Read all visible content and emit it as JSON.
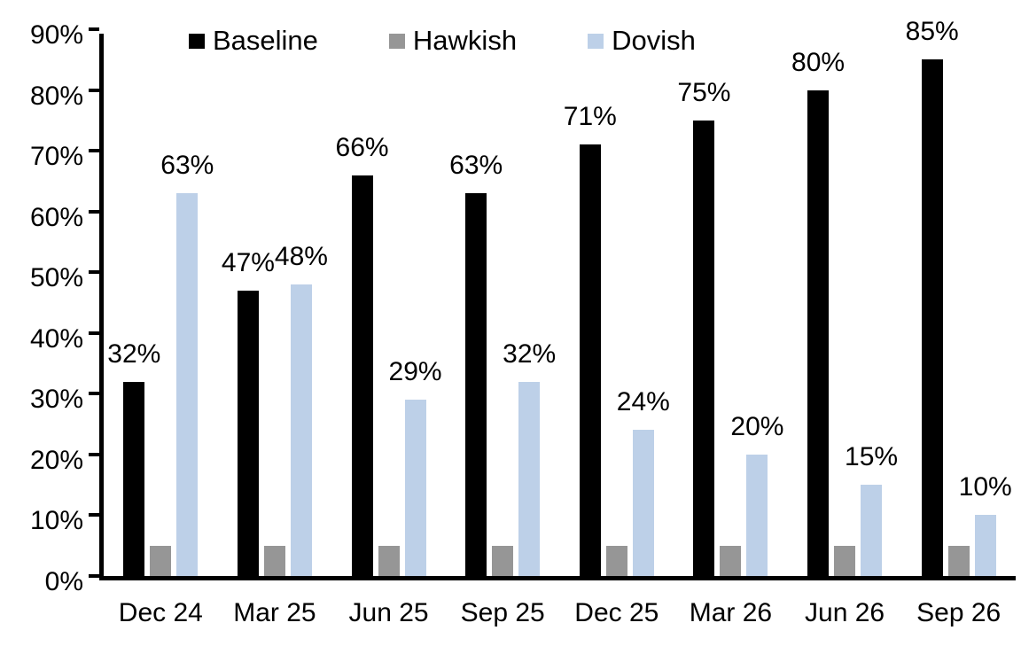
{
  "chart_data": {
    "type": "bar",
    "title": "",
    "xlabel": "",
    "ylabel": "",
    "categories": [
      "Dec 24",
      "Mar 25",
      "Jun 25",
      "Sep 25",
      "Dec 25",
      "Mar 26",
      "Jun 26",
      "Sep 26"
    ],
    "series": [
      {
        "name": "Baseline",
        "color": "#000000",
        "values": [
          32,
          47,
          66,
          63,
          71,
          75,
          80,
          85
        ],
        "show_labels": true
      },
      {
        "name": "Hawkish",
        "color": "#969696",
        "values": [
          5,
          5,
          5,
          5,
          5,
          5,
          5,
          5
        ],
        "show_labels": false
      },
      {
        "name": "Dovish",
        "color": "#BDD0E8",
        "values": [
          63,
          48,
          29,
          32,
          24,
          20,
          15,
          10
        ],
        "show_labels": true
      }
    ],
    "ylim": [
      0,
      90
    ],
    "yticks": [
      0,
      10,
      20,
      30,
      40,
      50,
      60,
      70,
      80,
      90
    ],
    "ytick_format": "percent",
    "label_format": "percent",
    "grid": false,
    "legend_position": "top",
    "axis_color": "#000000",
    "background_color": "#ffffff"
  }
}
